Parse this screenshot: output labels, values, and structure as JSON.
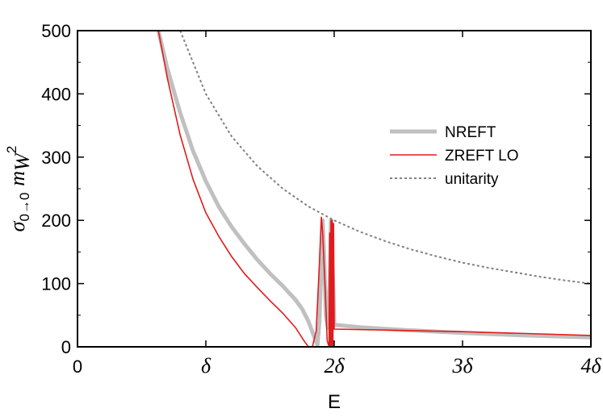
{
  "chart_data": {
    "type": "line",
    "title": "",
    "xlabel": "E",
    "ylabel": "σ0→0 mW2",
    "ylabel_parts": {
      "sigma": "σ",
      "sub": "0→0",
      "m": "m",
      "msub": "W",
      "sup": "2"
    },
    "xlim": [
      0,
      4
    ],
    "ylim": [
      0,
      500
    ],
    "x_unit": "δ",
    "x_ticks": [
      {
        "value": 0,
        "label": "0"
      },
      {
        "value": 1,
        "label": "δ"
      },
      {
        "value": 2,
        "label": "2δ"
      },
      {
        "value": 3,
        "label": "3δ"
      },
      {
        "value": 4,
        "label": "4δ"
      }
    ],
    "y_ticks": [
      {
        "value": 0,
        "label": "0"
      },
      {
        "value": 100,
        "label": "100"
      },
      {
        "value": 200,
        "label": "200"
      },
      {
        "value": 300,
        "label": "300"
      },
      {
        "value": 400,
        "label": "400"
      },
      {
        "value": 500,
        "label": "500"
      }
    ],
    "grid": false,
    "legend_position": "right",
    "series": [
      {
        "name": "NREFT",
        "color": "#c0c0c0",
        "style": "solid-thick",
        "points": [
          [
            0.63,
            500
          ],
          [
            0.7,
            440
          ],
          [
            0.8,
            370
          ],
          [
            0.9,
            310
          ],
          [
            1.0,
            262
          ],
          [
            1.1,
            222
          ],
          [
            1.2,
            190
          ],
          [
            1.3,
            163
          ],
          [
            1.4,
            138
          ],
          [
            1.5,
            116
          ],
          [
            1.6,
            96
          ],
          [
            1.7,
            74
          ],
          [
            1.75,
            60
          ],
          [
            1.8,
            40
          ],
          [
            1.84,
            18
          ],
          [
            1.87,
            3
          ],
          [
            1.885,
            40
          ],
          [
            1.9,
            130
          ],
          [
            1.91,
            200
          ],
          [
            1.92,
            150
          ],
          [
            1.935,
            50
          ],
          [
            1.95,
            30
          ],
          [
            1.965,
            100
          ],
          [
            1.975,
            200
          ],
          [
            1.985,
            140
          ],
          [
            1.995,
            80
          ],
          [
            2.0,
            35
          ],
          [
            2.2,
            31
          ],
          [
            2.5,
            27
          ],
          [
            3.0,
            22
          ],
          [
            3.5,
            18
          ],
          [
            4.0,
            15
          ]
        ]
      },
      {
        "name": "ZREFT LO",
        "color": "#e31a1c",
        "style": "solid-thin",
        "points": [
          [
            0.63,
            500
          ],
          [
            0.7,
            425
          ],
          [
            0.8,
            335
          ],
          [
            0.9,
            265
          ],
          [
            1.0,
            212
          ],
          [
            1.1,
            175
          ],
          [
            1.2,
            143
          ],
          [
            1.3,
            116
          ],
          [
            1.4,
            94
          ],
          [
            1.5,
            73
          ],
          [
            1.6,
            53
          ],
          [
            1.7,
            30
          ],
          [
            1.77,
            8
          ],
          [
            1.8,
            0
          ],
          [
            1.83,
            0
          ],
          [
            1.86,
            25
          ],
          [
            1.88,
            110
          ],
          [
            1.9,
            205
          ],
          [
            1.91,
            180
          ],
          [
            1.93,
            90
          ],
          [
            1.945,
            10
          ],
          [
            1.96,
            0
          ],
          [
            1.965,
            180
          ],
          [
            1.97,
            0
          ],
          [
            1.975,
            200
          ],
          [
            1.98,
            0
          ],
          [
            1.985,
            200
          ],
          [
            1.99,
            0
          ],
          [
            1.995,
            195
          ],
          [
            2.0,
            28
          ],
          [
            2.5,
            26
          ],
          [
            3.0,
            24
          ],
          [
            3.5,
            21
          ],
          [
            4.0,
            18
          ]
        ]
      },
      {
        "name": "unitarity",
        "color": "#808080",
        "style": "dotted",
        "points": [
          [
            0.8,
            500
          ],
          [
            1.0,
            400
          ],
          [
            1.2,
            333
          ],
          [
            1.4,
            286
          ],
          [
            1.6,
            250
          ],
          [
            1.8,
            222
          ],
          [
            2.0,
            200
          ],
          [
            2.2,
            182
          ],
          [
            2.4,
            167
          ],
          [
            2.6,
            154
          ],
          [
            2.8,
            143
          ],
          [
            3.0,
            133
          ],
          [
            3.2,
            125
          ],
          [
            3.4,
            118
          ],
          [
            3.6,
            111
          ],
          [
            3.8,
            105
          ],
          [
            4.0,
            100
          ]
        ]
      }
    ]
  }
}
